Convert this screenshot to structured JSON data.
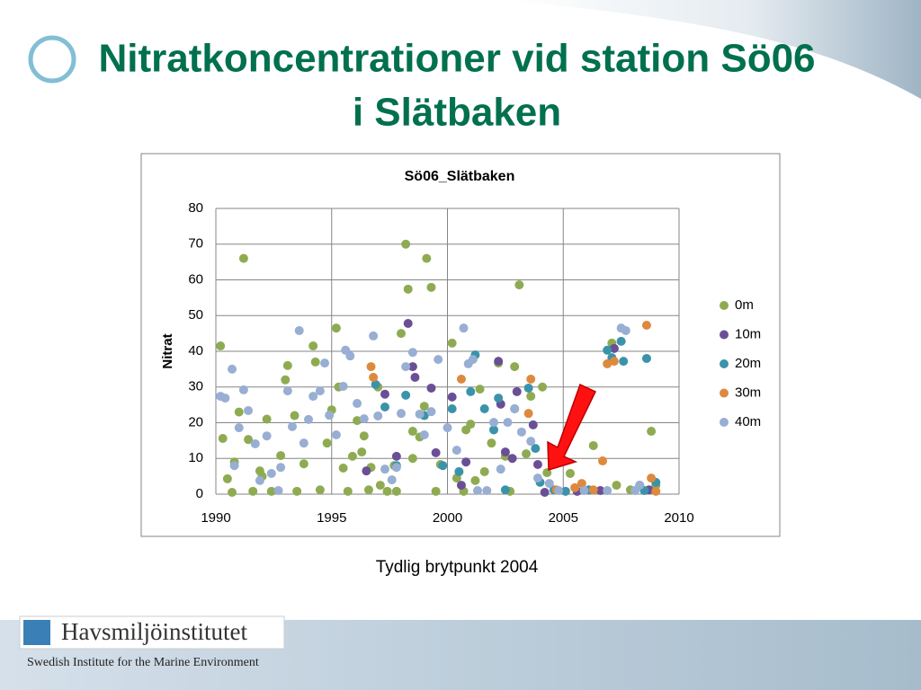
{
  "title_lines": [
    "Nitratkoncentrationer vid station Sö06",
    "i Slätbaken"
  ],
  "caption": "Tydlig brytpunkt 2004",
  "footer": {
    "logo": "Havsmiljöinstitutet",
    "subtitle": "Swedish Institute for the Marine Environment"
  },
  "chart_data": {
    "type": "scatter",
    "title": "Sö06_Slätbaken",
    "y_label": "Nitrat",
    "xlim": [
      1990,
      2010
    ],
    "xticks": [
      1990,
      1995,
      2000,
      2005,
      2010
    ],
    "ylim": [
      0,
      80
    ],
    "yticks": [
      0,
      10,
      20,
      30,
      40,
      50,
      60,
      70,
      80
    ],
    "grid": true,
    "legend": "right",
    "series": [
      {
        "name": "0m",
        "color": "#8fab52",
        "x": [
          1990.2,
          1990.3,
          1990.5,
          1990.7,
          1990.8,
          1991.0,
          1991.2,
          1991.4,
          1991.6,
          1991.9,
          1992.2,
          1992.0,
          1992.4,
          1992.8,
          1993.0,
          1993.1,
          1993.4,
          1993.5,
          1993.8,
          1994.2,
          1994.3,
          1994.5,
          1994.8,
          1995.0,
          1995.2,
          1995.3,
          1995.5,
          1995.7,
          1995.9,
          1996.1,
          1996.3,
          1996.4,
          1996.6,
          1996.7,
          1997.0,
          1997.1,
          1997.4,
          1997.7,
          1997.8,
          1998.0,
          1998.2,
          1998.3,
          1998.5,
          1998.5,
          1998.8,
          1999.0,
          1999.1,
          1999.3,
          1999.5,
          1999.7,
          2000.2,
          2000.4,
          2000.7,
          2000.8,
          2001.0,
          2001.2,
          2001.4,
          2001.6,
          2001.9,
          2002.2,
          2002.5,
          2002.7,
          2002.9,
          2003.1,
          2003.4,
          2003.6,
          2004.1,
          2004.3,
          2005.3,
          2006.3,
          2007.1,
          2008.8,
          2007.3,
          2007.9,
          2009.0
        ],
        "values": [
          41.5,
          15.6,
          4.3,
          0.5,
          9,
          23,
          66,
          15.3,
          0.8,
          6.5,
          21,
          5,
          0.8,
          10.8,
          32,
          36,
          22,
          0.8,
          8.5,
          41.5,
          37,
          1.2,
          14.3,
          23.6,
          46.5,
          30,
          7.3,
          0.8,
          10.6,
          20.6,
          11.8,
          16.3,
          1.2,
          7.5,
          30,
          2.5,
          0.8,
          8,
          0.8,
          45,
          70,
          57.4,
          17.6,
          10,
          16,
          24.6,
          66,
          57.9,
          0.8,
          8.3,
          42.3,
          4.5,
          0.8,
          18,
          19.6,
          3.8,
          29.4,
          6.3,
          14.3,
          36.7,
          10.6,
          0.8,
          35.7,
          58.6,
          11.3,
          27.4,
          30,
          6,
          5.8,
          13.6,
          42.3,
          17.6,
          2.5,
          1.2,
          2.5
        ]
      },
      {
        "name": "10m",
        "color": "#6a4f96",
        "x": [
          1998.3,
          1998.5,
          1998.6,
          1997.8,
          1996.5,
          1997.3,
          1999.3,
          1999.5,
          2000.2,
          2000.8,
          2000.6,
          2002.2,
          2002.3,
          2002.5,
          2002.8,
          2003.0,
          2003.7,
          2003.9,
          2004.2,
          2005.6,
          2007.2,
          2006.6,
          2008.3,
          2008.7
        ],
        "values": [
          47.8,
          35.7,
          32.7,
          10.6,
          6.5,
          28,
          29.7,
          11.6,
          27.2,
          9,
          2.5,
          37.2,
          25.2,
          11.8,
          10,
          28.7,
          19.4,
          8.3,
          0.5,
          0.8,
          40.8,
          1,
          2.5,
          1.2
        ]
      },
      {
        "name": "20m",
        "color": "#3a93aa",
        "x": [
          1996.9,
          1997.3,
          1997.8,
          1998.2,
          1999.0,
          1999.8,
          2000.2,
          2000.5,
          2001.0,
          2001.2,
          2001.6,
          2002.0,
          2002.2,
          2002.5,
          2002.9,
          2003.5,
          2003.8,
          2004.0,
          2004.6,
          2005.1,
          2006.1,
          2006.9,
          2007.1,
          2007.5,
          2007.6,
          2008.6,
          2009.0,
          2008.5
        ],
        "values": [
          30.7,
          24.4,
          8,
          27.7,
          22,
          8,
          23.9,
          6.3,
          28.7,
          39,
          23.9,
          18,
          26.9,
          1.2,
          23.9,
          29.7,
          12.8,
          3.3,
          1.2,
          0.8,
          1.2,
          40.3,
          38.2,
          42.8,
          37.2,
          38,
          3.3,
          1
        ]
      },
      {
        "name": "30m",
        "color": "#dd8a3e",
        "x": [
          1996.7,
          1996.8,
          2000.6,
          2003.5,
          2003.6,
          2004.7,
          2005.5,
          2005.8,
          2006.7,
          2006.9,
          2007.2,
          2008.6,
          2008.8,
          2009.0,
          2006.3
        ],
        "values": [
          35.7,
          32.7,
          32.2,
          22.6,
          32.2,
          1.2,
          1.8,
          3,
          9.3,
          36.5,
          37.2,
          47.3,
          4.5,
          0.8,
          1.2
        ]
      },
      {
        "name": "40m",
        "color": "#98aed3",
        "x": [
          1990.2,
          1990.4,
          1990.7,
          1990.8,
          1991.0,
          1991.2,
          1991.4,
          1991.7,
          1991.9,
          1992.2,
          1992.4,
          1992.7,
          1992.8,
          1993.1,
          1993.3,
          1993.6,
          1993.8,
          1994.0,
          1994.2,
          1994.5,
          1994.7,
          1994.9,
          1995.2,
          1995.5,
          1995.6,
          1995.8,
          1996.1,
          1996.4,
          1996.8,
          1997.0,
          1997.3,
          1997.6,
          1997.8,
          1998.0,
          1998.2,
          1998.5,
          1998.8,
          1999.0,
          1999.3,
          1999.6,
          2000.0,
          2000.4,
          2000.7,
          2000.9,
          2001.1,
          2001.3,
          2001.7,
          2002.0,
          2002.3,
          2002.6,
          2002.9,
          2003.2,
          2003.6,
          2003.9,
          2004.4,
          2004.8,
          2005.9,
          2006.9,
          2007.5,
          2007.7,
          2008.1,
          2008.3
        ],
        "values": [
          27.4,
          26.9,
          35,
          8,
          18.6,
          29.2,
          23.4,
          14.1,
          3.8,
          16.3,
          5.8,
          1,
          7.5,
          28.9,
          18.9,
          45.8,
          14.3,
          20.9,
          27.4,
          28.9,
          36.7,
          22.1,
          16.6,
          30.2,
          40.3,
          38.7,
          25.4,
          21.1,
          44.3,
          21.9,
          7,
          4,
          7.5,
          22.6,
          35.7,
          39.7,
          22.4,
          16.6,
          23.1,
          37.7,
          18.6,
          12.3,
          46.5,
          36.5,
          37.7,
          1,
          1,
          20.1,
          7,
          20.1,
          23.9,
          17.4,
          14.8,
          4.5,
          3,
          1,
          1,
          1,
          46.5,
          45.8,
          1,
          2.5
        ]
      }
    ]
  }
}
